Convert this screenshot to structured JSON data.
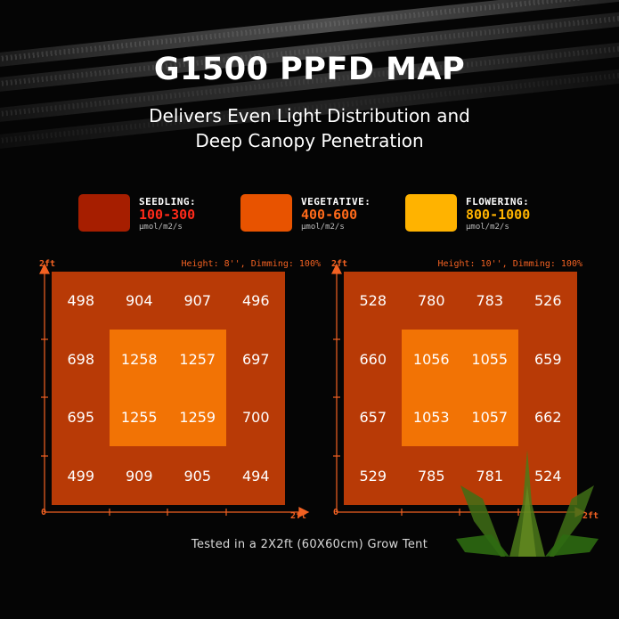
{
  "colors": {
    "background": "#050505",
    "seedling": "#A61E00",
    "vegetative": "#E85300",
    "flowering": "#FFB300",
    "axis": "#F26122",
    "map_outer": "#B83A06",
    "map_inner": "#F27305"
  },
  "title": "G1500 PPFD MAP",
  "subtitle_line1": "Delivers Even Light Distribution and",
  "subtitle_line2": "Deep Canopy Penetration",
  "legend": [
    {
      "label": "SEEDLING:",
      "range": "100-300",
      "unit": "μmol/m2/s",
      "color": "#A61E00",
      "range_color": "#FF2A1A"
    },
    {
      "label": "VEGETATIVE:",
      "range": "400-600",
      "unit": "μmol/m2/s",
      "color": "#E85300",
      "range_color": "#FF6A1A"
    },
    {
      "label": "FLOWERING:",
      "range": "800-1000",
      "unit": "μmol/m2/s",
      "color": "#FFB300",
      "range_color": "#FFB300"
    }
  ],
  "maps": [
    {
      "height_label": "Height: 8'', Dimming: 100%",
      "y_axis_max": "2ft",
      "x_axis_max": "2ft",
      "origin": "0",
      "rows": [
        [
          "498",
          "904",
          "907",
          "496"
        ],
        [
          "698",
          "1258",
          "1257",
          "697"
        ],
        [
          "695",
          "1255",
          "1259",
          "700"
        ],
        [
          "499",
          "909",
          "905",
          "494"
        ]
      ]
    },
    {
      "height_label": "Height: 10'', Dimming: 100%",
      "y_axis_max": "2ft",
      "x_axis_max": "2ft",
      "origin": "0",
      "rows": [
        [
          "528",
          "780",
          "783",
          "526"
        ],
        [
          "660",
          "1056",
          "1055",
          "659"
        ],
        [
          "657",
          "1053",
          "1057",
          "662"
        ],
        [
          "529",
          "785",
          "781",
          "524"
        ]
      ]
    }
  ],
  "footer": "Tested in a 2X2ft (60X60cm) Grow Tent",
  "logo_icon": "leaf-logo-icon"
}
